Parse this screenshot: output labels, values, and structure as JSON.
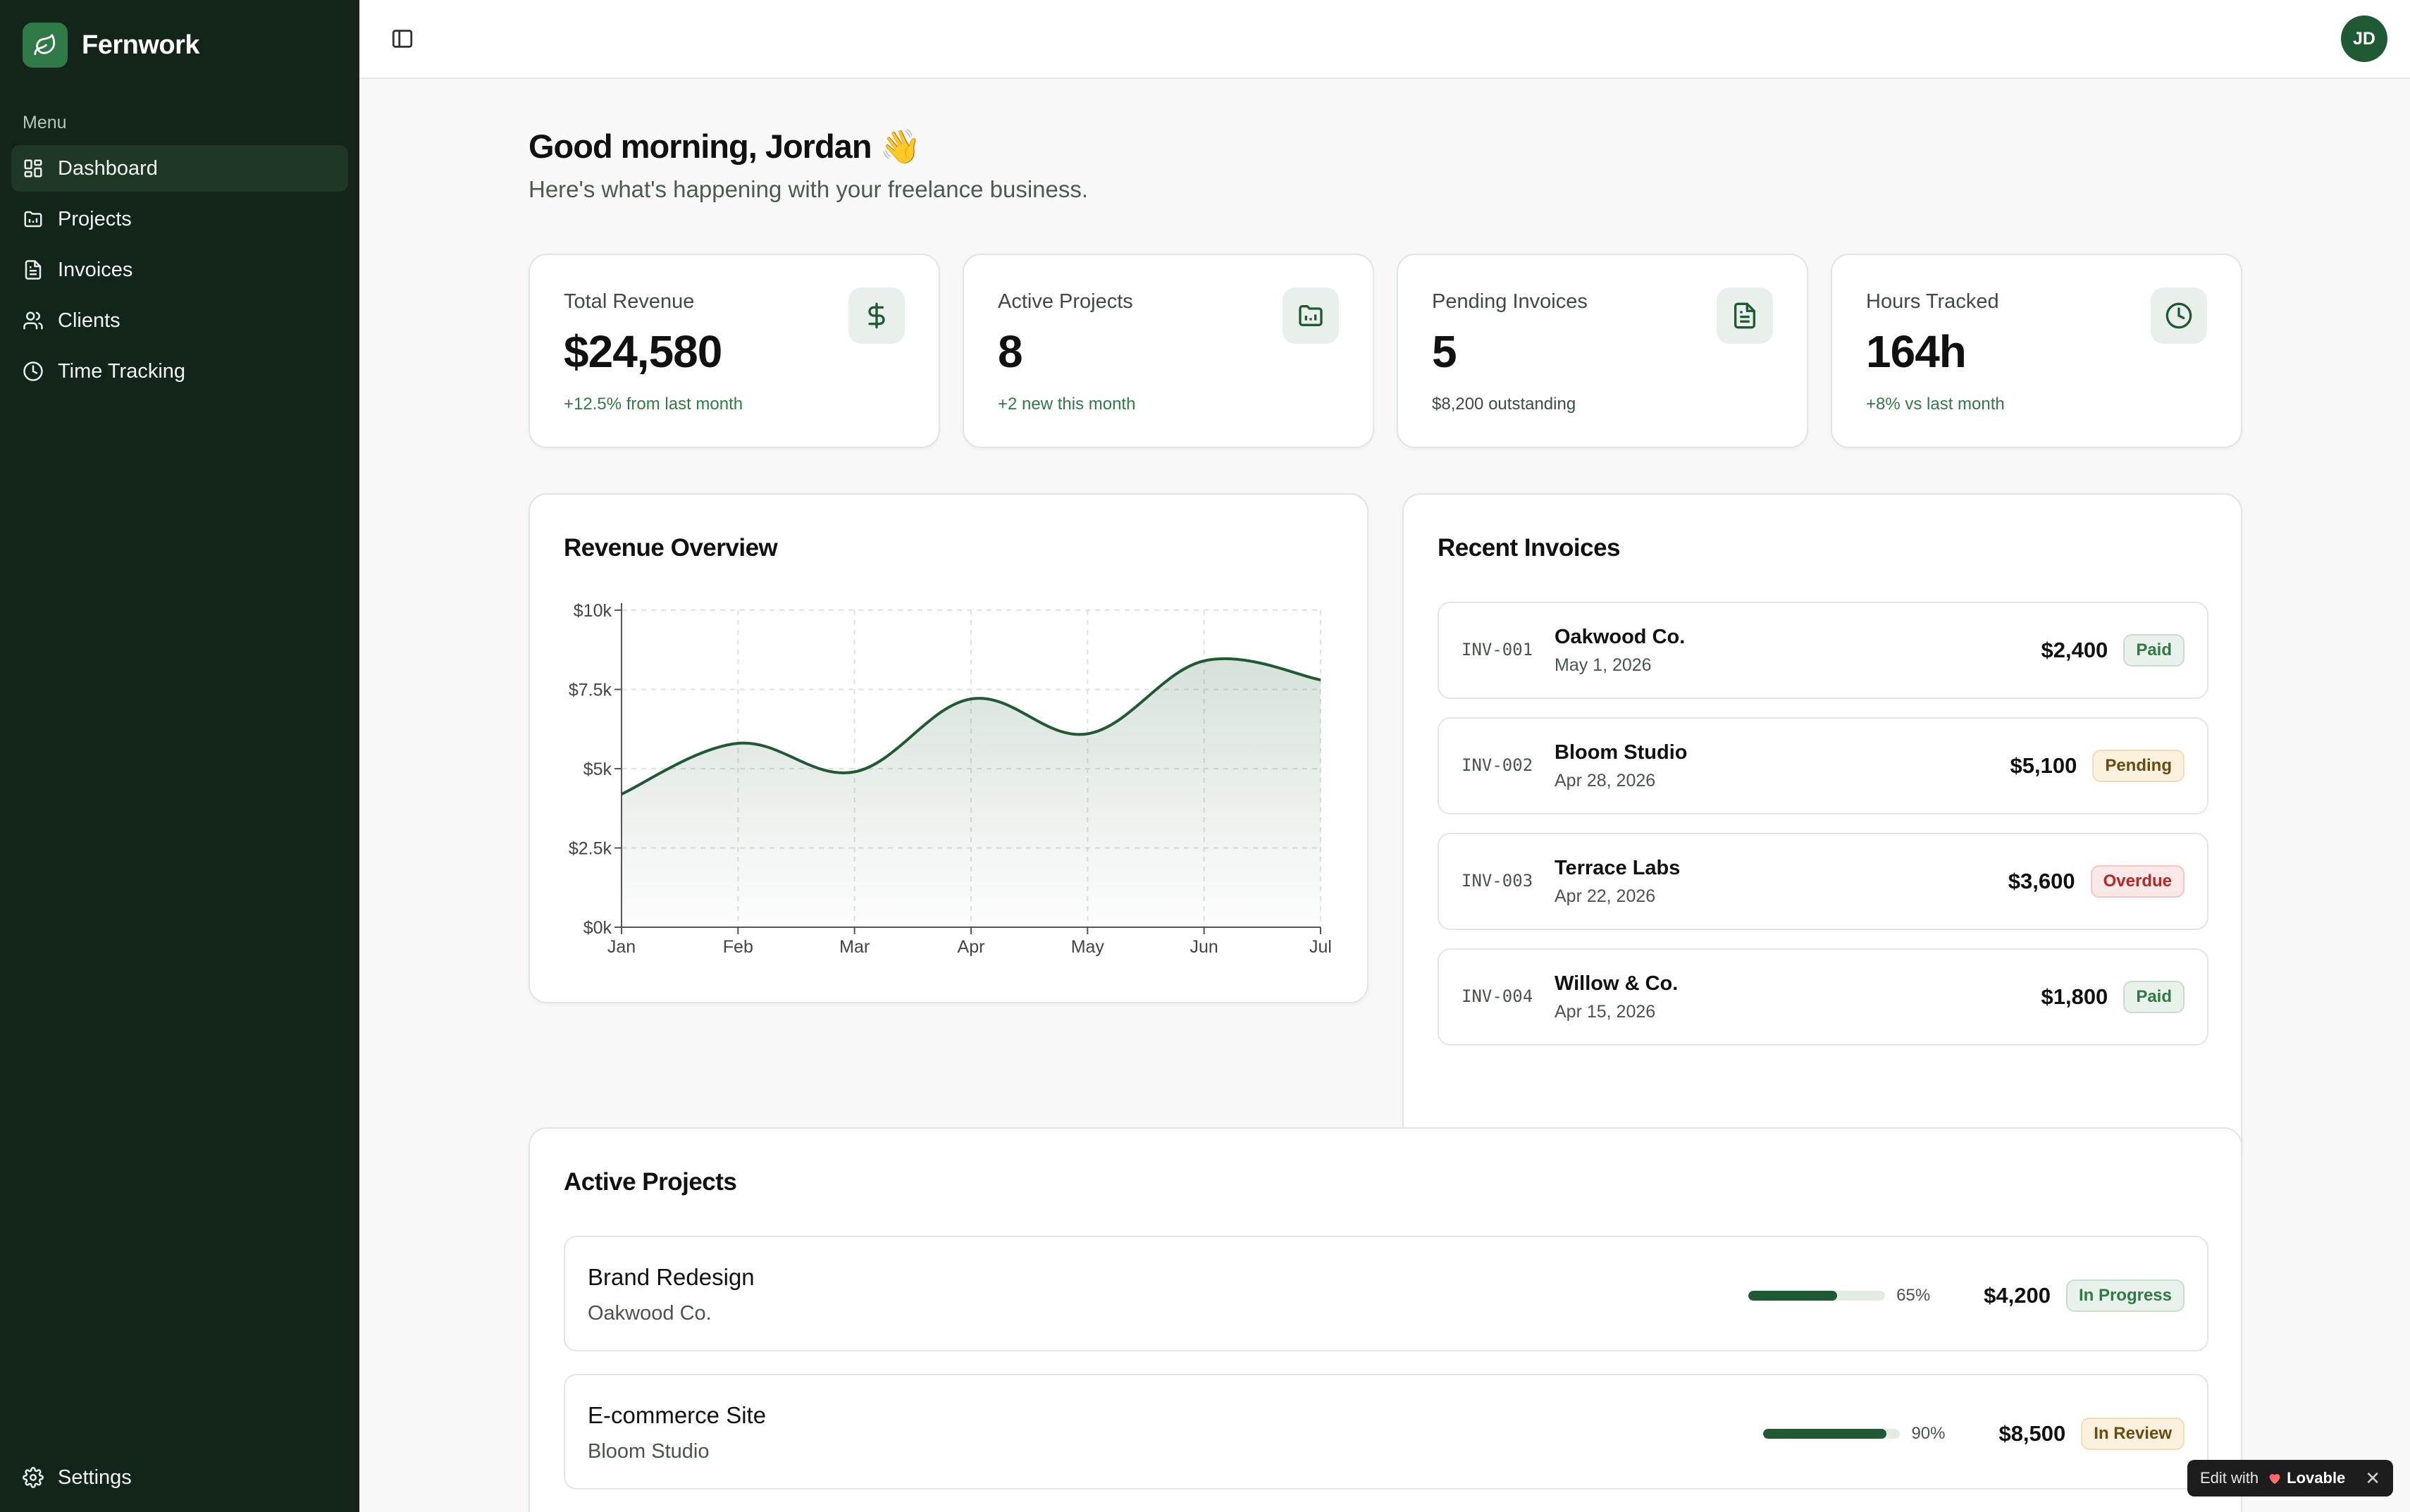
{
  "brand": {
    "name": "Fernwork"
  },
  "sidebar": {
    "menu_label": "Menu",
    "items": [
      {
        "label": "Dashboard",
        "icon": "dashboard-icon",
        "active": true
      },
      {
        "label": "Projects",
        "icon": "folder-icon"
      },
      {
        "label": "Invoices",
        "icon": "file-icon"
      },
      {
        "label": "Clients",
        "icon": "users-icon"
      },
      {
        "label": "Time Tracking",
        "icon": "clock-icon"
      }
    ],
    "settings_label": "Settings"
  },
  "header": {
    "avatar_initials": "JD"
  },
  "greeting": {
    "title": "Good morning, Jordan 👋",
    "subtitle": "Here's what's happening with your freelance business."
  },
  "stats": [
    {
      "label": "Total Revenue",
      "value": "$24,580",
      "note": "+12.5% from last month",
      "icon": "dollar-icon"
    },
    {
      "label": "Active Projects",
      "value": "8",
      "note": "+2 new this month",
      "icon": "folder-icon"
    },
    {
      "label": "Pending Invoices",
      "value": "5",
      "note": "$8,200 outstanding",
      "icon": "file-icon"
    },
    {
      "label": "Hours Tracked",
      "value": "164h",
      "note": "+8% vs last month",
      "icon": "clock-icon"
    }
  ],
  "revenue": {
    "title": "Revenue Overview"
  },
  "chart_data": {
    "type": "area",
    "title": "Revenue Overview",
    "categories": [
      "Jan",
      "Feb",
      "Mar",
      "Apr",
      "May",
      "Jun",
      "Jul"
    ],
    "values": [
      4200,
      5800,
      4900,
      7200,
      6100,
      8400,
      7800
    ],
    "y_ticks": [
      "$0k",
      "$2.5k",
      "$5k",
      "$7.5k",
      "$10k"
    ],
    "ylim": [
      0,
      10000
    ],
    "grid": true,
    "color": "#1f5a34"
  },
  "invoices": {
    "title": "Recent Invoices",
    "items": [
      {
        "id": "INV-001",
        "client": "Oakwood Co.",
        "date": "May 1, 2026",
        "amount": "$2,400",
        "status": "Paid"
      },
      {
        "id": "INV-002",
        "client": "Bloom Studio",
        "date": "Apr 28, 2026",
        "amount": "$5,100",
        "status": "Pending"
      },
      {
        "id": "INV-003",
        "client": "Terrace Labs",
        "date": "Apr 22, 2026",
        "amount": "$3,600",
        "status": "Overdue"
      },
      {
        "id": "INV-004",
        "client": "Willow & Co.",
        "date": "Apr 15, 2026",
        "amount": "$1,800",
        "status": "Paid"
      }
    ]
  },
  "projects": {
    "title": "Active Projects",
    "items": [
      {
        "name": "Brand Redesign",
        "client": "Oakwood Co.",
        "progress_pct": 65,
        "progress_label": "65%",
        "amount": "$4,200",
        "status": "In Progress"
      },
      {
        "name": "E-commerce Site",
        "client": "Bloom Studio",
        "progress_pct": 90,
        "progress_label": "90%",
        "amount": "$8,500",
        "status": "In Review"
      }
    ]
  },
  "lovable": {
    "edit_label": "Edit with",
    "brand": "Lovable",
    "close": "✕"
  }
}
